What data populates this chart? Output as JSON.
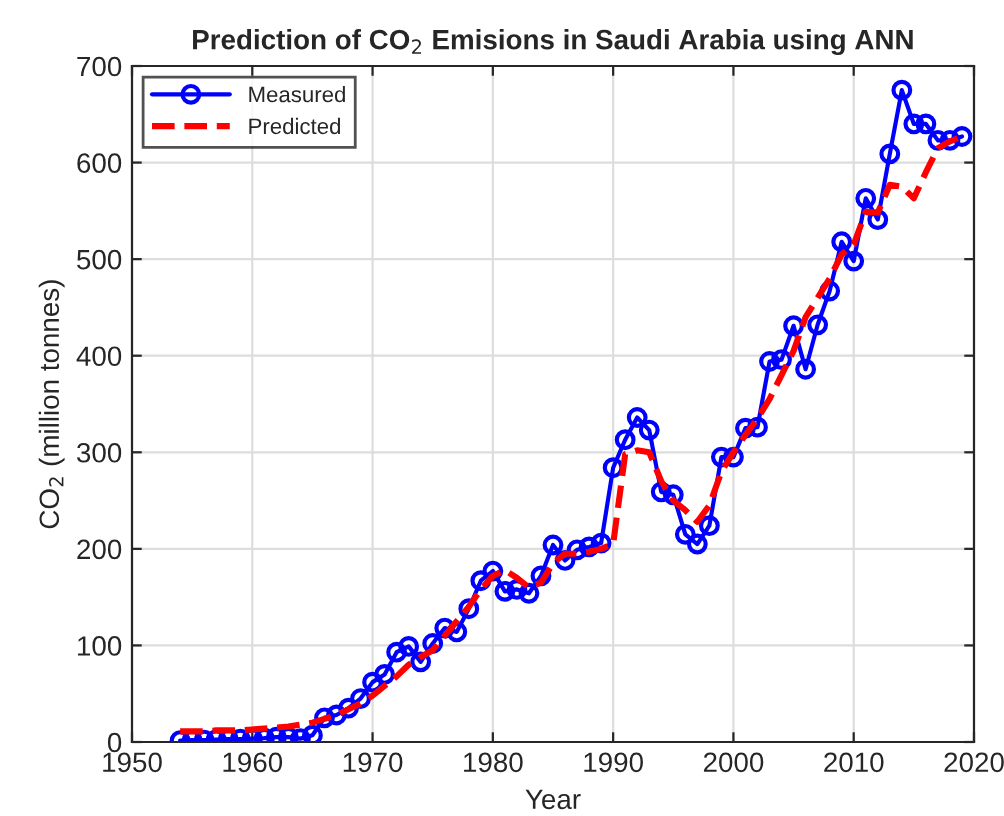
{
  "chart_data": {
    "type": "line",
    "title": "Prediction of CO$_{2}$ Emisions in Saudi Arabia using ANN",
    "xlabel": "Year",
    "ylabel": "CO$_{2}$ (million tonnes)",
    "x": [
      1954,
      1955,
      1956,
      1957,
      1958,
      1959,
      1960,
      1961,
      1962,
      1963,
      1964,
      1965,
      1966,
      1967,
      1968,
      1969,
      1970,
      1971,
      1972,
      1973,
      1974,
      1975,
      1976,
      1977,
      1978,
      1979,
      1980,
      1981,
      1982,
      1983,
      1984,
      1985,
      1986,
      1987,
      1988,
      1989,
      1990,
      1991,
      1992,
      1993,
      1994,
      1995,
      1996,
      1997,
      1998,
      1999,
      2000,
      2001,
      2002,
      2003,
      2004,
      2005,
      2006,
      2007,
      2008,
      2009,
      2010,
      2011,
      2012,
      2013,
      2014,
      2015,
      2016,
      2017,
      2018,
      2019
    ],
    "series": [
      {
        "name": "Measured",
        "color": "#0000ff",
        "marker": "circle",
        "line_style": "solid",
        "values": [
          1.5,
          2,
          2,
          2.5,
          3,
          3,
          3.5,
          4,
          5,
          5,
          3.5,
          7,
          25,
          28,
          35,
          45,
          62,
          70,
          93,
          99,
          83,
          102,
          118,
          114,
          138,
          167,
          177,
          156,
          158,
          154,
          172,
          204,
          188,
          199,
          202,
          206,
          284,
          313,
          336,
          323,
          259,
          256,
          215,
          205,
          224,
          295,
          295,
          325,
          326,
          394,
          396,
          431,
          386,
          432,
          467,
          518,
          498,
          563,
          541,
          609,
          675,
          640,
          640,
          623,
          623,
          627
        ]
      },
      {
        "name": "Predicted",
        "color": "#ff0000",
        "marker": "none",
        "line_style": "dashed",
        "values": [
          11,
          11,
          11,
          12,
          12,
          12,
          13,
          14,
          15,
          16,
          18,
          20,
          24,
          28,
          34,
          40,
          48,
          58,
          68,
          80,
          88,
          95,
          110,
          125,
          140,
          158,
          172,
          178,
          170,
          160,
          165,
          185,
          195,
          195,
          197,
          200,
          205,
          298,
          302,
          300,
          270,
          250,
          240,
          228,
          245,
          280,
          300,
          318,
          335,
          355,
          380,
          405,
          440,
          460,
          480,
          505,
          515,
          549,
          548,
          577,
          575,
          563,
          590,
          615,
          622,
          627
        ]
      }
    ],
    "xlim": [
      1950,
      2020
    ],
    "xticks": [
      1950,
      1960,
      1970,
      1980,
      1990,
      2000,
      2010,
      2020
    ],
    "ylim": [
      0,
      700
    ],
    "yticks": [
      0,
      100,
      200,
      300,
      400,
      500,
      600,
      700
    ],
    "grid": true,
    "legend": "top left"
  }
}
